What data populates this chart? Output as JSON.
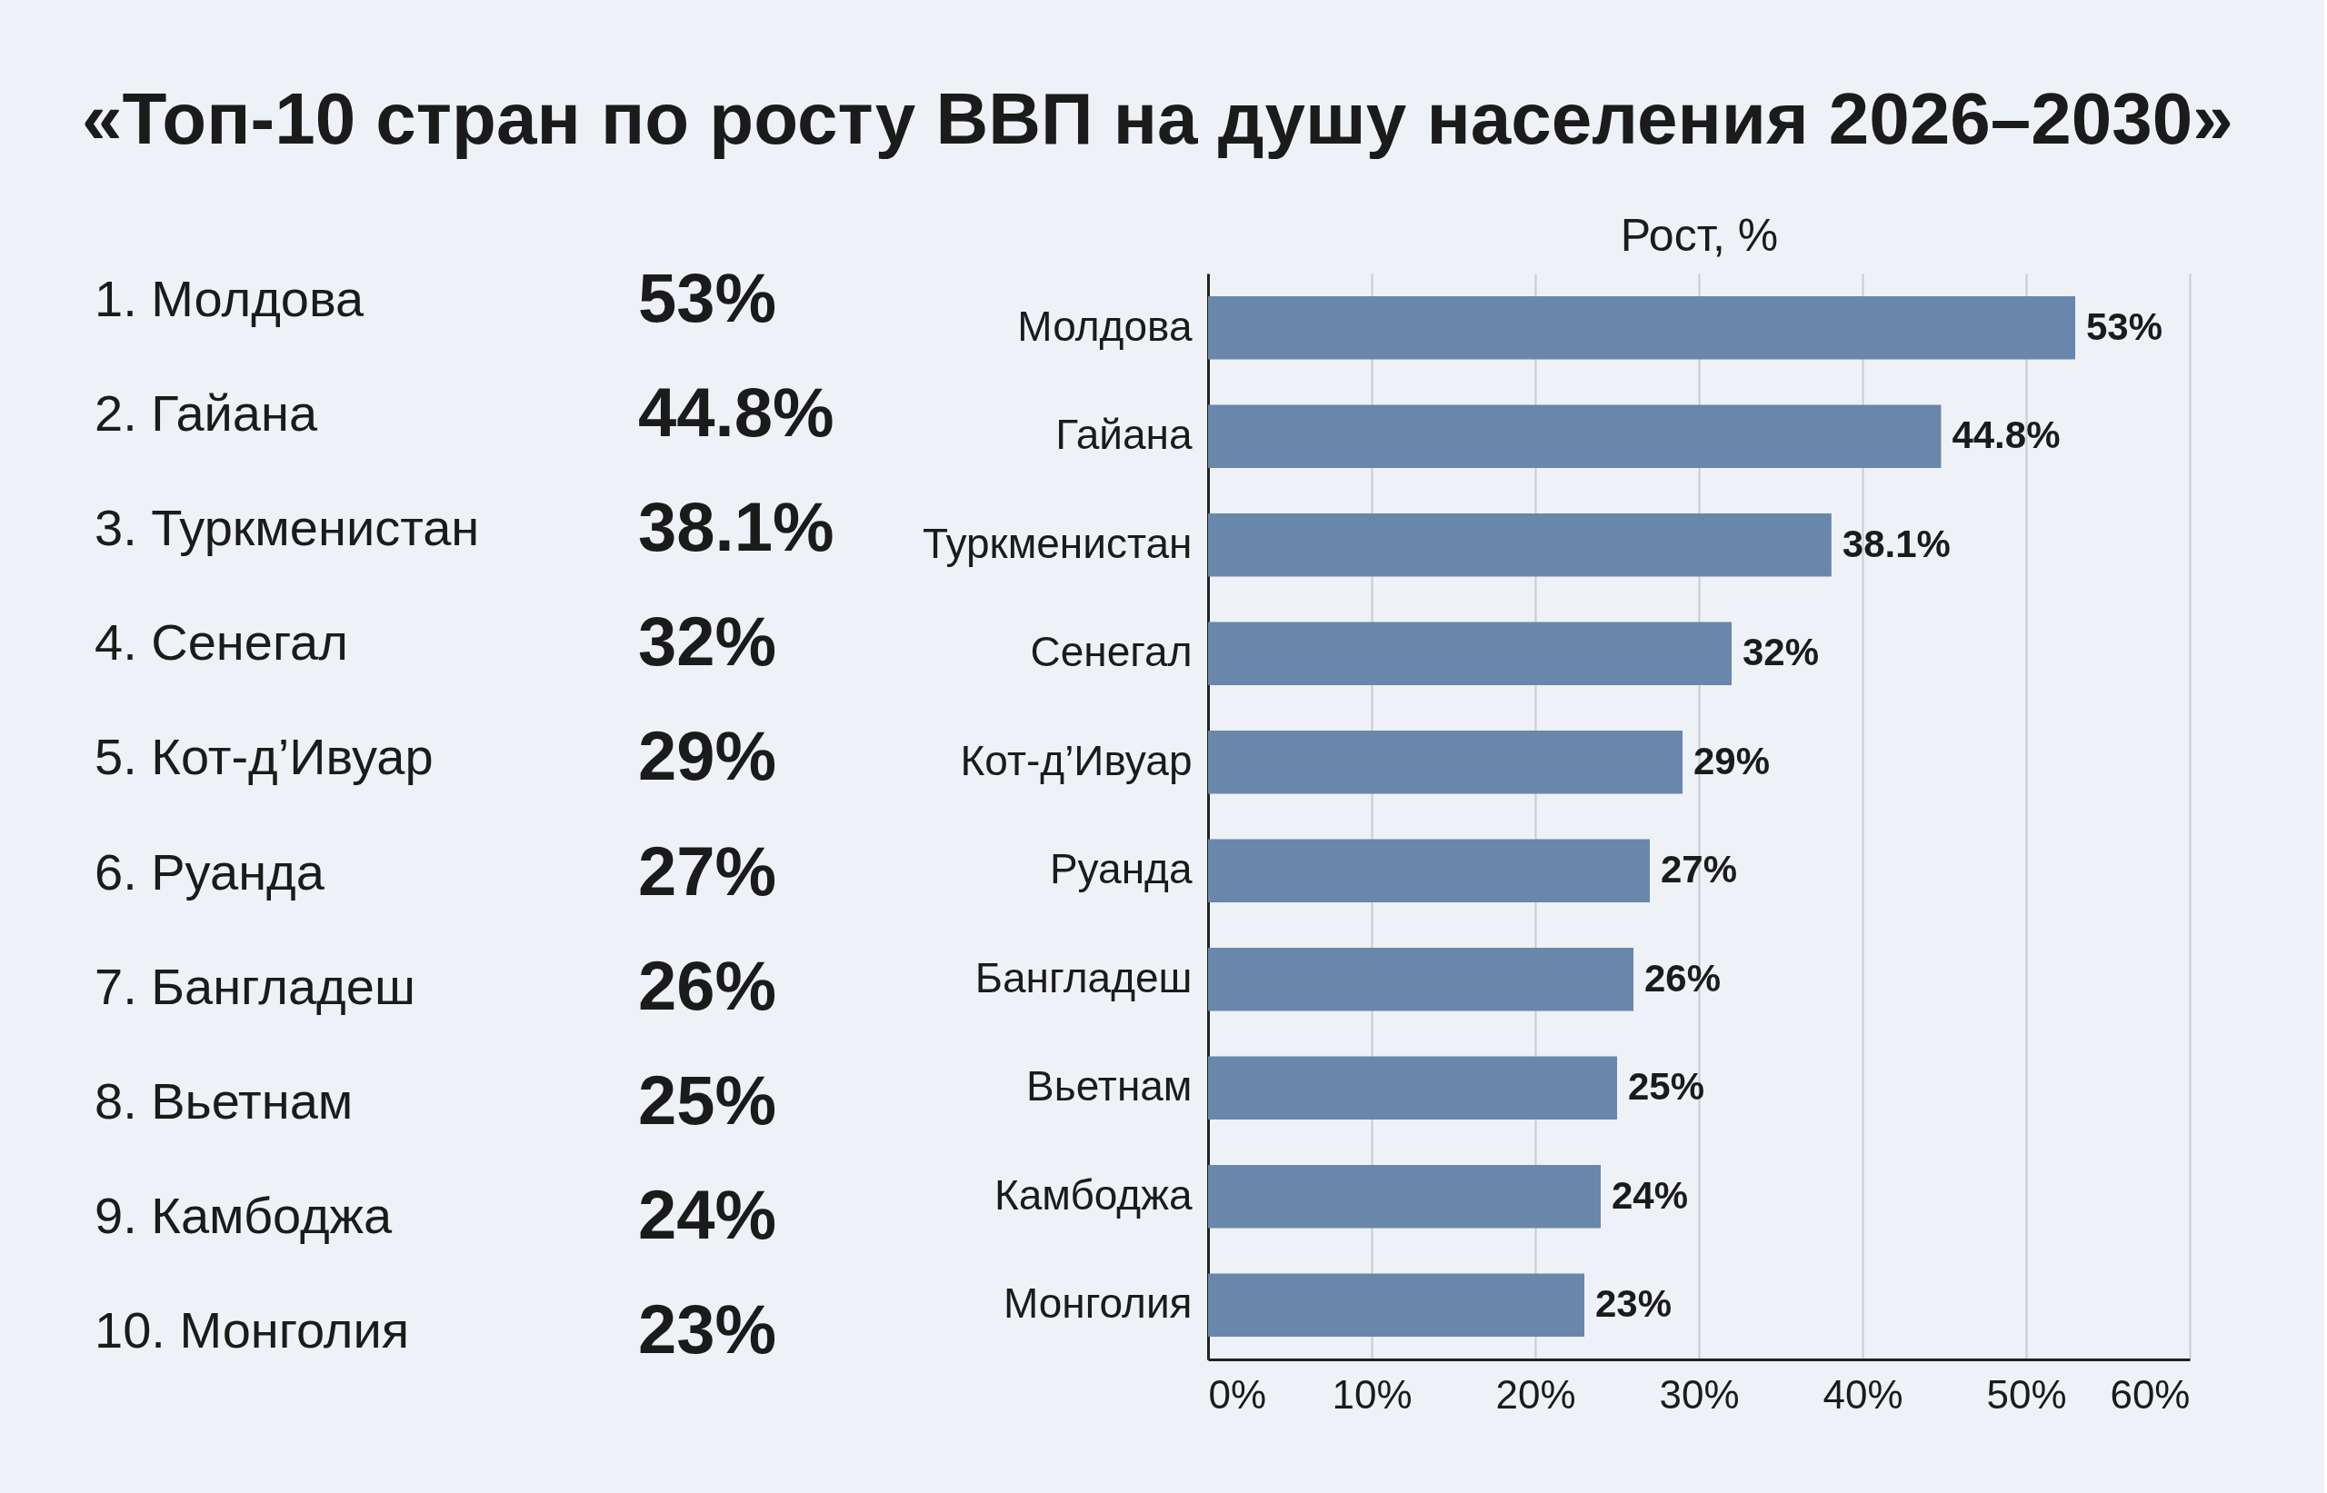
{
  "chart_data": {
    "type": "bar",
    "orientation": "horizontal",
    "title": "«Топ-10 стран по росту ВВП на душу населения 2026–2030»",
    "xlabel": "Рост, %",
    "categories": [
      "Молдова",
      "Гайана",
      "Туркменистан",
      "Сенегал",
      "Кот-д’Ивуар",
      "Руанда",
      "Бангладеш",
      "Вьетнам",
      "Камбоджа",
      "Монголия"
    ],
    "values": [
      53,
      44.8,
      38.1,
      32,
      29,
      27,
      26,
      25,
      24,
      23
    ],
    "value_labels": [
      "53%",
      "44.8%",
      "38.1%",
      "32%",
      "29%",
      "27%",
      "26%",
      "25%",
      "24%",
      "23%"
    ],
    "annotations": [
      "1. Молдова",
      "2. Гайана",
      "3. Туркменистан",
      "4. Сенегал",
      "5. Кот-д’Ивуар",
      "6. Руанда",
      "7. Бангладеш",
      "8. Вьетнам",
      "9. Камбоджа",
      "10. Монголия"
    ],
    "color": "#6887ab",
    "xlim": [
      0,
      60
    ],
    "xticks": [
      {
        "value": 0,
        "label": "0%"
      },
      {
        "value": 10,
        "label": "10%"
      },
      {
        "value": 20,
        "label": "20%"
      },
      {
        "value": 30,
        "label": "30%"
      },
      {
        "value": 40,
        "label": "40%"
      },
      {
        "value": 50,
        "label": "50%"
      },
      {
        "value": 60,
        "label": "60%"
      }
    ],
    "grid": "x"
  }
}
